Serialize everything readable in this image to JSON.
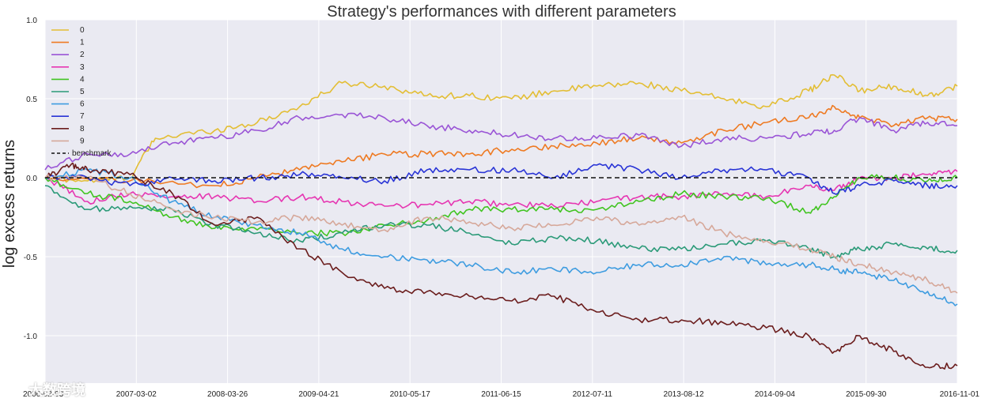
{
  "chart_data": {
    "type": "line",
    "title": "Strategy's performances with different parameters",
    "xlabel": "",
    "ylabel": "log excess returns",
    "x_tick_labels": [
      "2006-02-03",
      "2007-03-02",
      "2008-03-26",
      "2009-04-21",
      "2010-05-17",
      "2011-06-15",
      "2012-07-11",
      "2013-08-12",
      "2014-09-04",
      "2015-09-30",
      "2016-11-01"
    ],
    "x_range": [
      0,
      10.75
    ],
    "ylim": [
      -1.3,
      1.0
    ],
    "y_ticks": [
      1.0,
      0.5,
      0.0,
      -0.5,
      -1.0
    ],
    "y_tick_labels": [
      "1.0",
      "0.5",
      "0.0",
      "-0.5",
      "-1.0"
    ],
    "grid": true,
    "legend_position": "top-left",
    "benchmark": {
      "name": "benchmark",
      "value": 0.0,
      "color": "#111111",
      "style": "dashed"
    },
    "series": [
      {
        "name": "0",
        "color": "#E3BE35",
        "points": [
          [
            0,
            0
          ],
          [
            0.5,
            -0.02
          ],
          [
            1.0,
            0.0
          ],
          [
            1.3,
            0.25
          ],
          [
            2,
            0.3
          ],
          [
            2.5,
            0.35
          ],
          [
            3,
            0.45
          ],
          [
            3.5,
            0.6
          ],
          [
            4,
            0.58
          ],
          [
            4.5,
            0.52
          ],
          [
            5,
            0.52
          ],
          [
            5.5,
            0.5
          ],
          [
            6,
            0.55
          ],
          [
            6.5,
            0.58
          ],
          [
            7,
            0.6
          ],
          [
            7.5,
            0.55
          ],
          [
            8,
            0.5
          ],
          [
            8.5,
            0.45
          ],
          [
            9,
            0.55
          ],
          [
            9.3,
            0.65
          ],
          [
            9.6,
            0.55
          ],
          [
            10,
            0.58
          ],
          [
            10.4,
            0.52
          ],
          [
            10.75,
            0.58
          ]
        ]
      },
      {
        "name": "1",
        "color": "#EE7A22",
        "points": [
          [
            0,
            0
          ],
          [
            1,
            -0.02
          ],
          [
            2,
            -0.05
          ],
          [
            2.5,
            0.0
          ],
          [
            3,
            0.05
          ],
          [
            3.5,
            0.1
          ],
          [
            4,
            0.15
          ],
          [
            4.5,
            0.15
          ],
          [
            5,
            0.15
          ],
          [
            5.5,
            0.18
          ],
          [
            6,
            0.2
          ],
          [
            6.5,
            0.22
          ],
          [
            7,
            0.25
          ],
          [
            7.5,
            0.22
          ],
          [
            8,
            0.3
          ],
          [
            8.5,
            0.35
          ],
          [
            9,
            0.38
          ],
          [
            9.3,
            0.45
          ],
          [
            9.6,
            0.38
          ],
          [
            10,
            0.33
          ],
          [
            10.4,
            0.38
          ],
          [
            10.75,
            0.37
          ]
        ]
      },
      {
        "name": "2",
        "color": "#9A55D6",
        "points": [
          [
            0,
            0.05
          ],
          [
            0.5,
            0.15
          ],
          [
            1,
            0.15
          ],
          [
            1.5,
            0.22
          ],
          [
            2,
            0.25
          ],
          [
            2.5,
            0.3
          ],
          [
            3,
            0.38
          ],
          [
            3.5,
            0.4
          ],
          [
            4,
            0.38
          ],
          [
            4.5,
            0.33
          ],
          [
            5,
            0.3
          ],
          [
            5.5,
            0.27
          ],
          [
            6,
            0.25
          ],
          [
            6.5,
            0.25
          ],
          [
            7,
            0.27
          ],
          [
            7.5,
            0.2
          ],
          [
            8,
            0.25
          ],
          [
            8.5,
            0.25
          ],
          [
            9,
            0.28
          ],
          [
            9.3,
            0.3
          ],
          [
            9.6,
            0.38
          ],
          [
            10,
            0.3
          ],
          [
            10.4,
            0.35
          ],
          [
            10.75,
            0.33
          ]
        ]
      },
      {
        "name": "3",
        "color": "#E636B2",
        "points": [
          [
            0,
            0
          ],
          [
            0.5,
            -0.15
          ],
          [
            1,
            -0.1
          ],
          [
            1.5,
            -0.12
          ],
          [
            2,
            -0.12
          ],
          [
            2.5,
            -0.15
          ],
          [
            3,
            -0.12
          ],
          [
            3.5,
            -0.15
          ],
          [
            4,
            -0.18
          ],
          [
            4.5,
            -0.17
          ],
          [
            5,
            -0.15
          ],
          [
            5.5,
            -0.17
          ],
          [
            6,
            -0.18
          ],
          [
            6.5,
            -0.15
          ],
          [
            7,
            -0.12
          ],
          [
            7.5,
            -0.12
          ],
          [
            8,
            -0.1
          ],
          [
            8.5,
            -0.12
          ],
          [
            9,
            -0.05
          ],
          [
            9.3,
            -0.08
          ],
          [
            9.6,
            0.0
          ],
          [
            10,
            0.0
          ],
          [
            10.4,
            0.02
          ],
          [
            10.75,
            0.04
          ]
        ]
      },
      {
        "name": "4",
        "color": "#41C421",
        "points": [
          [
            0,
            0
          ],
          [
            0.5,
            -0.1
          ],
          [
            1,
            -0.15
          ],
          [
            1.5,
            -0.25
          ],
          [
            2,
            -0.32
          ],
          [
            2.5,
            -0.33
          ],
          [
            3,
            -0.35
          ],
          [
            3.5,
            -0.35
          ],
          [
            4,
            -0.3
          ],
          [
            4.5,
            -0.27
          ],
          [
            5,
            -0.2
          ],
          [
            5.5,
            -0.2
          ],
          [
            6,
            -0.2
          ],
          [
            6.5,
            -0.2
          ],
          [
            7,
            -0.15
          ],
          [
            7.5,
            -0.1
          ],
          [
            8,
            -0.12
          ],
          [
            8.5,
            -0.13
          ],
          [
            9,
            -0.22
          ],
          [
            9.3,
            -0.12
          ],
          [
            9.6,
            0.0
          ],
          [
            10,
            0.0
          ],
          [
            10.4,
            -0.02
          ],
          [
            10.75,
            0.0
          ]
        ]
      },
      {
        "name": "5",
        "color": "#2B9A78",
        "points": [
          [
            0,
            -0.05
          ],
          [
            0.5,
            -0.2
          ],
          [
            1,
            -0.18
          ],
          [
            1.5,
            -0.2
          ],
          [
            2,
            -0.3
          ],
          [
            2.5,
            -0.35
          ],
          [
            3,
            -0.4
          ],
          [
            3.5,
            -0.35
          ],
          [
            4,
            -0.3
          ],
          [
            4.5,
            -0.3
          ],
          [
            5,
            -0.35
          ],
          [
            5.5,
            -0.42
          ],
          [
            6,
            -0.38
          ],
          [
            6.5,
            -0.4
          ],
          [
            7,
            -0.45
          ],
          [
            7.5,
            -0.45
          ],
          [
            8,
            -0.42
          ],
          [
            8.5,
            -0.4
          ],
          [
            9,
            -0.45
          ],
          [
            9.3,
            -0.5
          ],
          [
            9.6,
            -0.45
          ],
          [
            10,
            -0.42
          ],
          [
            10.4,
            -0.45
          ],
          [
            10.75,
            -0.46
          ]
        ]
      },
      {
        "name": "6",
        "color": "#3E9CE0",
        "points": [
          [
            0,
            0
          ],
          [
            0.5,
            0.05
          ],
          [
            1,
            0.0
          ],
          [
            1.5,
            -0.15
          ],
          [
            2,
            -0.25
          ],
          [
            2.5,
            -0.3
          ],
          [
            3,
            -0.35
          ],
          [
            3.5,
            -0.45
          ],
          [
            4,
            -0.5
          ],
          [
            4.5,
            -0.52
          ],
          [
            5,
            -0.55
          ],
          [
            5.5,
            -0.6
          ],
          [
            6,
            -0.58
          ],
          [
            6.5,
            -0.6
          ],
          [
            7,
            -0.55
          ],
          [
            7.5,
            -0.55
          ],
          [
            8,
            -0.5
          ],
          [
            8.5,
            -0.55
          ],
          [
            9,
            -0.55
          ],
          [
            9.3,
            -0.58
          ],
          [
            9.6,
            -0.6
          ],
          [
            10,
            -0.65
          ],
          [
            10.4,
            -0.72
          ],
          [
            10.75,
            -0.8
          ]
        ]
      },
      {
        "name": "7",
        "color": "#2934D6",
        "points": [
          [
            0,
            0
          ],
          [
            0.5,
            0.0
          ],
          [
            1,
            -0.05
          ],
          [
            1.5,
            0.0
          ],
          [
            2,
            -0.02
          ],
          [
            2.5,
            0.0
          ],
          [
            3,
            0.02
          ],
          [
            3.5,
            0.0
          ],
          [
            4,
            -0.02
          ],
          [
            4.5,
            0.05
          ],
          [
            5,
            0.05
          ],
          [
            5.5,
            0.05
          ],
          [
            6,
            0.0
          ],
          [
            6.5,
            0.08
          ],
          [
            7,
            0.05
          ],
          [
            7.5,
            0.0
          ],
          [
            8,
            0.05
          ],
          [
            8.5,
            0.05
          ],
          [
            9,
            0.0
          ],
          [
            9.3,
            -0.1
          ],
          [
            9.6,
            -0.05
          ],
          [
            10,
            -0.02
          ],
          [
            10.4,
            -0.05
          ],
          [
            10.75,
            -0.05
          ]
        ]
      },
      {
        "name": "8",
        "color": "#6B1D1D",
        "points": [
          [
            0,
            0
          ],
          [
            0.3,
            0.08
          ],
          [
            0.5,
            0.05
          ],
          [
            1,
            0.02
          ],
          [
            1.5,
            -0.1
          ],
          [
            2,
            -0.3
          ],
          [
            2.5,
            -0.25
          ],
          [
            3,
            -0.45
          ],
          [
            3.5,
            -0.6
          ],
          [
            4,
            -0.7
          ],
          [
            4.5,
            -0.72
          ],
          [
            5,
            -0.75
          ],
          [
            5.5,
            -0.78
          ],
          [
            6,
            -0.75
          ],
          [
            6.5,
            -0.85
          ],
          [
            7,
            -0.9
          ],
          [
            7.5,
            -0.9
          ],
          [
            8,
            -0.92
          ],
          [
            8.5,
            -0.95
          ],
          [
            9,
            -1.0
          ],
          [
            9.3,
            -1.1
          ],
          [
            9.6,
            -1.0
          ],
          [
            10,
            -1.1
          ],
          [
            10.4,
            -1.2
          ],
          [
            10.75,
            -1.19
          ]
        ]
      },
      {
        "name": "9",
        "color": "#D6A89A",
        "points": [
          [
            0,
            0
          ],
          [
            0.5,
            0.0
          ],
          [
            1,
            -0.1
          ],
          [
            1.5,
            -0.2
          ],
          [
            2,
            -0.25
          ],
          [
            2.5,
            -0.28
          ],
          [
            3,
            -0.25
          ],
          [
            3.5,
            -0.3
          ],
          [
            4,
            -0.33
          ],
          [
            4.5,
            -0.25
          ],
          [
            5,
            -0.28
          ],
          [
            5.5,
            -0.32
          ],
          [
            6,
            -0.3
          ],
          [
            6.5,
            -0.25
          ],
          [
            7,
            -0.3
          ],
          [
            7.5,
            -0.25
          ],
          [
            8,
            -0.35
          ],
          [
            8.5,
            -0.4
          ],
          [
            9,
            -0.45
          ],
          [
            9.3,
            -0.5
          ],
          [
            9.6,
            -0.55
          ],
          [
            10,
            -0.6
          ],
          [
            10.4,
            -0.65
          ],
          [
            10.75,
            -0.73
          ]
        ]
      }
    ]
  },
  "watermark": {
    "text": "大数跨境"
  }
}
